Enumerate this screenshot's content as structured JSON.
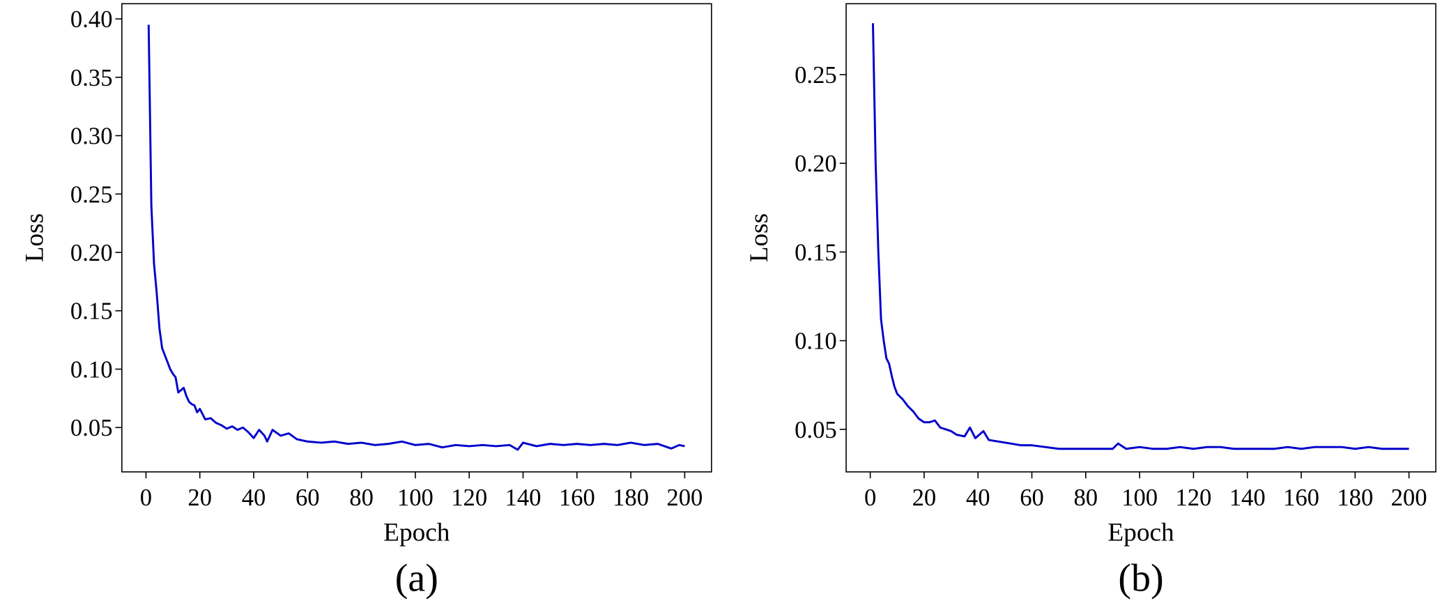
{
  "chart_data": [
    {
      "type": "line",
      "caption": "(a)",
      "xlabel": "Epoch",
      "ylabel": "Loss",
      "color": "#0000cc",
      "x": [
        1,
        2,
        3,
        4,
        5,
        6,
        7,
        8,
        9,
        10,
        11,
        12,
        13,
        14,
        15,
        16,
        17,
        18,
        19,
        20,
        22,
        24,
        26,
        28,
        30,
        32,
        34,
        36,
        38,
        40,
        42,
        44,
        45,
        47,
        50,
        53,
        56,
        60,
        65,
        70,
        75,
        80,
        85,
        90,
        95,
        100,
        105,
        110,
        115,
        120,
        125,
        130,
        135,
        138,
        140,
        145,
        150,
        155,
        160,
        165,
        170,
        175,
        180,
        185,
        190,
        195,
        198,
        200
      ],
      "values": [
        0.395,
        0.24,
        0.19,
        0.165,
        0.135,
        0.118,
        0.112,
        0.106,
        0.1,
        0.096,
        0.093,
        0.08,
        0.082,
        0.084,
        0.077,
        0.072,
        0.07,
        0.069,
        0.063,
        0.066,
        0.057,
        0.058,
        0.054,
        0.052,
        0.049,
        0.051,
        0.048,
        0.05,
        0.046,
        0.041,
        0.048,
        0.043,
        0.038,
        0.048,
        0.043,
        0.045,
        0.04,
        0.038,
        0.037,
        0.038,
        0.036,
        0.037,
        0.035,
        0.036,
        0.038,
        0.035,
        0.036,
        0.033,
        0.035,
        0.034,
        0.035,
        0.034,
        0.035,
        0.031,
        0.037,
        0.034,
        0.036,
        0.035,
        0.036,
        0.035,
        0.036,
        0.035,
        0.037,
        0.035,
        0.036,
        0.032,
        0.035,
        0.034
      ],
      "xlim": [
        -8.95,
        209.95
      ],
      "xticks": [
        0,
        20,
        40,
        60,
        80,
        100,
        120,
        140,
        160,
        180,
        200
      ],
      "ylim": [
        0.012,
        0.413
      ],
      "yticks": [
        0.05,
        {
          "value": 0.1,
          "label": "0.10"
        },
        0.15,
        {
          "value": 0.2,
          "label": "0.20"
        },
        0.25,
        {
          "value": 0.3,
          "label": "0.30"
        },
        0.35,
        {
          "value": 0.4,
          "label": "0.40"
        }
      ]
    },
    {
      "type": "line",
      "caption": "(b)",
      "xlabel": "Epoch",
      "ylabel": "Loss",
      "color": "#0000cc",
      "x": [
        1,
        2,
        3,
        4,
        5,
        6,
        7,
        8,
        9,
        10,
        12,
        14,
        16,
        18,
        20,
        22,
        24,
        26,
        28,
        30,
        32,
        35,
        37,
        39,
        42,
        44,
        48,
        52,
        56,
        60,
        65,
        70,
        75,
        80,
        85,
        90,
        92,
        95,
        100,
        105,
        110,
        115,
        120,
        125,
        130,
        135,
        140,
        145,
        150,
        155,
        160,
        165,
        170,
        175,
        180,
        185,
        190,
        195,
        200
      ],
      "values": [
        0.279,
        0.2,
        0.15,
        0.112,
        0.1,
        0.09,
        0.087,
        0.08,
        0.074,
        0.07,
        0.067,
        0.063,
        0.06,
        0.056,
        0.054,
        0.054,
        0.055,
        0.051,
        0.05,
        0.049,
        0.047,
        0.046,
        0.051,
        0.045,
        0.049,
        0.044,
        0.043,
        0.042,
        0.041,
        0.041,
        0.04,
        0.039,
        0.039,
        0.039,
        0.039,
        0.039,
        0.042,
        0.039,
        0.04,
        0.039,
        0.039,
        0.04,
        0.039,
        0.04,
        0.04,
        0.039,
        0.039,
        0.039,
        0.039,
        0.04,
        0.039,
        0.04,
        0.04,
        0.04,
        0.039,
        0.04,
        0.039,
        0.039,
        0.039
      ],
      "xlim": [
        -8.95,
        209.95
      ],
      "xticks": [
        0,
        20,
        40,
        60,
        80,
        100,
        120,
        140,
        160,
        180,
        200
      ],
      "ylim": [
        0.026,
        0.29
      ],
      "yticks": [
        0.05,
        {
          "value": 0.1,
          "label": "0.10"
        },
        0.15,
        {
          "value": 0.2,
          "label": "0.20"
        },
        0.25
      ]
    }
  ]
}
